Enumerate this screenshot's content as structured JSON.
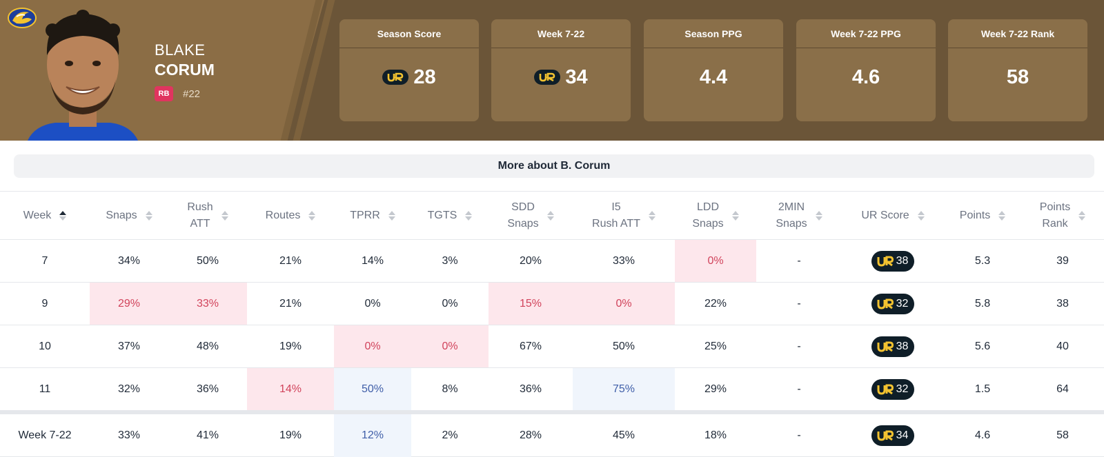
{
  "player": {
    "first_name": "BLAKE",
    "last_name": "CORUM",
    "position": "RB",
    "number": "#22",
    "team_logo": "rams-logo",
    "photo": "player-headshot"
  },
  "stat_cards": [
    {
      "title": "Season Score",
      "value": "28",
      "ur_icon": true
    },
    {
      "title": "Week 7-22",
      "value": "34",
      "ur_icon": true
    },
    {
      "title": "Season PPG",
      "value": "4.4",
      "ur_icon": false
    },
    {
      "title": "Week 7-22 PPG",
      "value": "4.6",
      "ur_icon": false
    },
    {
      "title": "Week 7-22 Rank",
      "value": "58",
      "ur_icon": false
    }
  ],
  "more_button_label": "More about B. Corum",
  "table": {
    "columns": [
      {
        "line1": "Week",
        "line2": ""
      },
      {
        "line1": "Snaps",
        "line2": ""
      },
      {
        "line1": "Rush",
        "line2": "ATT"
      },
      {
        "line1": "Routes",
        "line2": ""
      },
      {
        "line1": "TPRR",
        "line2": ""
      },
      {
        "line1": "TGTS",
        "line2": ""
      },
      {
        "line1": "SDD",
        "line2": "Snaps"
      },
      {
        "line1": "I5",
        "line2": "Rush ATT"
      },
      {
        "line1": "LDD",
        "line2": "Snaps"
      },
      {
        "line1": "2MIN",
        "line2": "Snaps"
      },
      {
        "line1": "UR Score",
        "line2": ""
      },
      {
        "line1": "Points",
        "line2": ""
      },
      {
        "line1": "Points",
        "line2": "Rank"
      }
    ],
    "rows": [
      {
        "cells": [
          "7",
          "34%",
          "50%",
          "21%",
          "14%",
          "3%",
          "20%",
          "33%",
          "0%",
          "-",
          "38",
          "5.3",
          "39"
        ],
        "highlight": [
          "",
          "",
          "",
          "",
          "",
          "",
          "",
          "",
          "red",
          "",
          "",
          "",
          ""
        ]
      },
      {
        "cells": [
          "9",
          "29%",
          "33%",
          "21%",
          "0%",
          "0%",
          "15%",
          "0%",
          "22%",
          "-",
          "32",
          "5.8",
          "38"
        ],
        "highlight": [
          "",
          "red",
          "red",
          "",
          "",
          "",
          "red",
          "red",
          "",
          "",
          "",
          "",
          ""
        ]
      },
      {
        "cells": [
          "10",
          "37%",
          "48%",
          "19%",
          "0%",
          "0%",
          "67%",
          "50%",
          "25%",
          "-",
          "38",
          "5.6",
          "40"
        ],
        "highlight": [
          "",
          "",
          "",
          "",
          "red",
          "red",
          "",
          "",
          "",
          "",
          "",
          "",
          ""
        ]
      },
      {
        "cells": [
          "11",
          "32%",
          "36%",
          "14%",
          "50%",
          "8%",
          "36%",
          "75%",
          "29%",
          "-",
          "32",
          "1.5",
          "64"
        ],
        "highlight": [
          "",
          "",
          "",
          "red",
          "blue",
          "",
          "",
          "blue",
          "",
          "",
          "",
          "",
          ""
        ]
      }
    ],
    "total": {
      "cells": [
        "Week 7-22",
        "33%",
        "41%",
        "19%",
        "12%",
        "2%",
        "28%",
        "45%",
        "18%",
        "-",
        "34",
        "4.6",
        "58"
      ],
      "highlight": [
        "",
        "",
        "",
        "",
        "blue",
        "",
        "",
        "",
        "",
        "",
        "",
        "",
        ""
      ]
    }
  },
  "colors": {
    "header_bg": "#6b5538",
    "card_bg": "#8a6f49",
    "badge_red": "#e0355f",
    "ur_pill": "#0f1e28",
    "ur_gold": "#f2c230",
    "cell_red_bg": "#fde7ec",
    "cell_red_text": "#d1435b",
    "cell_blue_bg": "#f0f5fc",
    "cell_blue_text": "#3f5ea8"
  }
}
